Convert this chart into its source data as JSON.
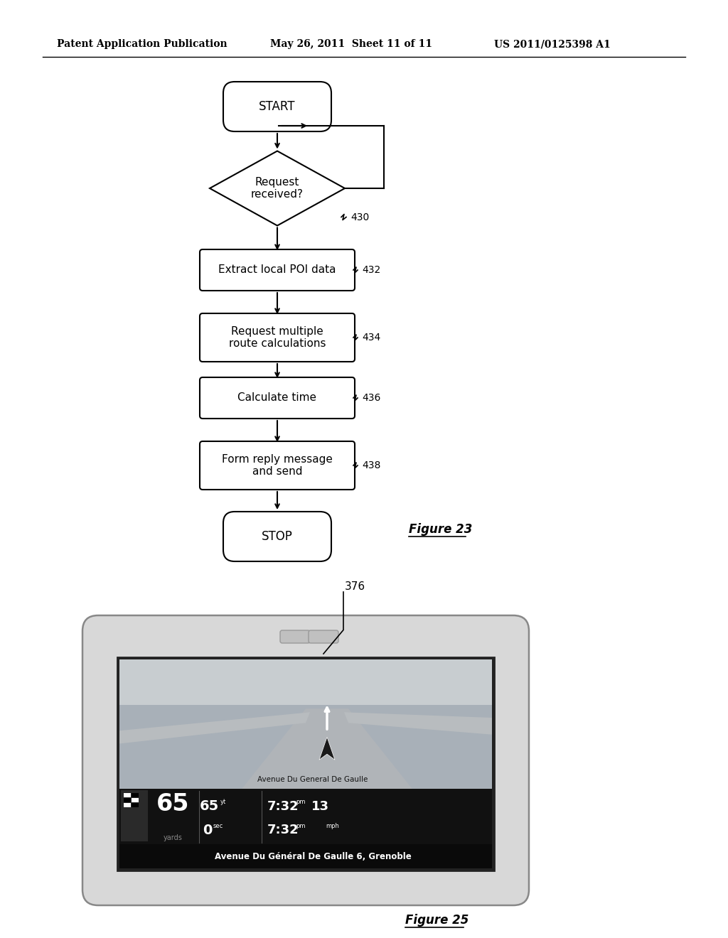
{
  "header_left": "Patent Application Publication",
  "header_mid": "May 26, 2011  Sheet 11 of 11",
  "header_right": "US 2011/0125398 A1",
  "flowchart": {
    "start_label": "START",
    "stop_label": "STOP",
    "boxes": [
      {
        "label": "Request\nreceived?",
        "type": "diamond",
        "ref": "430"
      },
      {
        "label": "Extract local POI data",
        "type": "rect",
        "ref": "432"
      },
      {
        "label": "Request multiple\nroute calculations",
        "type": "rect",
        "ref": "434"
      },
      {
        "label": "Calculate time",
        "type": "rect",
        "ref": "436"
      },
      {
        "label": "Form reply message\nand send",
        "type": "rect",
        "ref": "438"
      }
    ]
  },
  "fig23_label": "Figure 23",
  "fig25_label": "Figure 25",
  "device_ref": "376",
  "nav_street": "Avenue Du General De Gaulle",
  "nav_bottom_text": "Avenue Du Général De Gaulle 6, Grenoble",
  "nav_speed": "65",
  "nav_speed_unit": "yards",
  "nav_dist": "65",
  "nav_dist_unit": "yt",
  "nav_time1": "7:32",
  "nav_time1_suffix": "pm",
  "nav_dist2": "0",
  "nav_dist2_unit": "sec",
  "nav_time2": "7:32",
  "nav_time2_suffix": "pm",
  "nav_speed2": "13",
  "nav_speed2_unit": "mph",
  "background_color": "#ffffff",
  "line_color": "#000000"
}
